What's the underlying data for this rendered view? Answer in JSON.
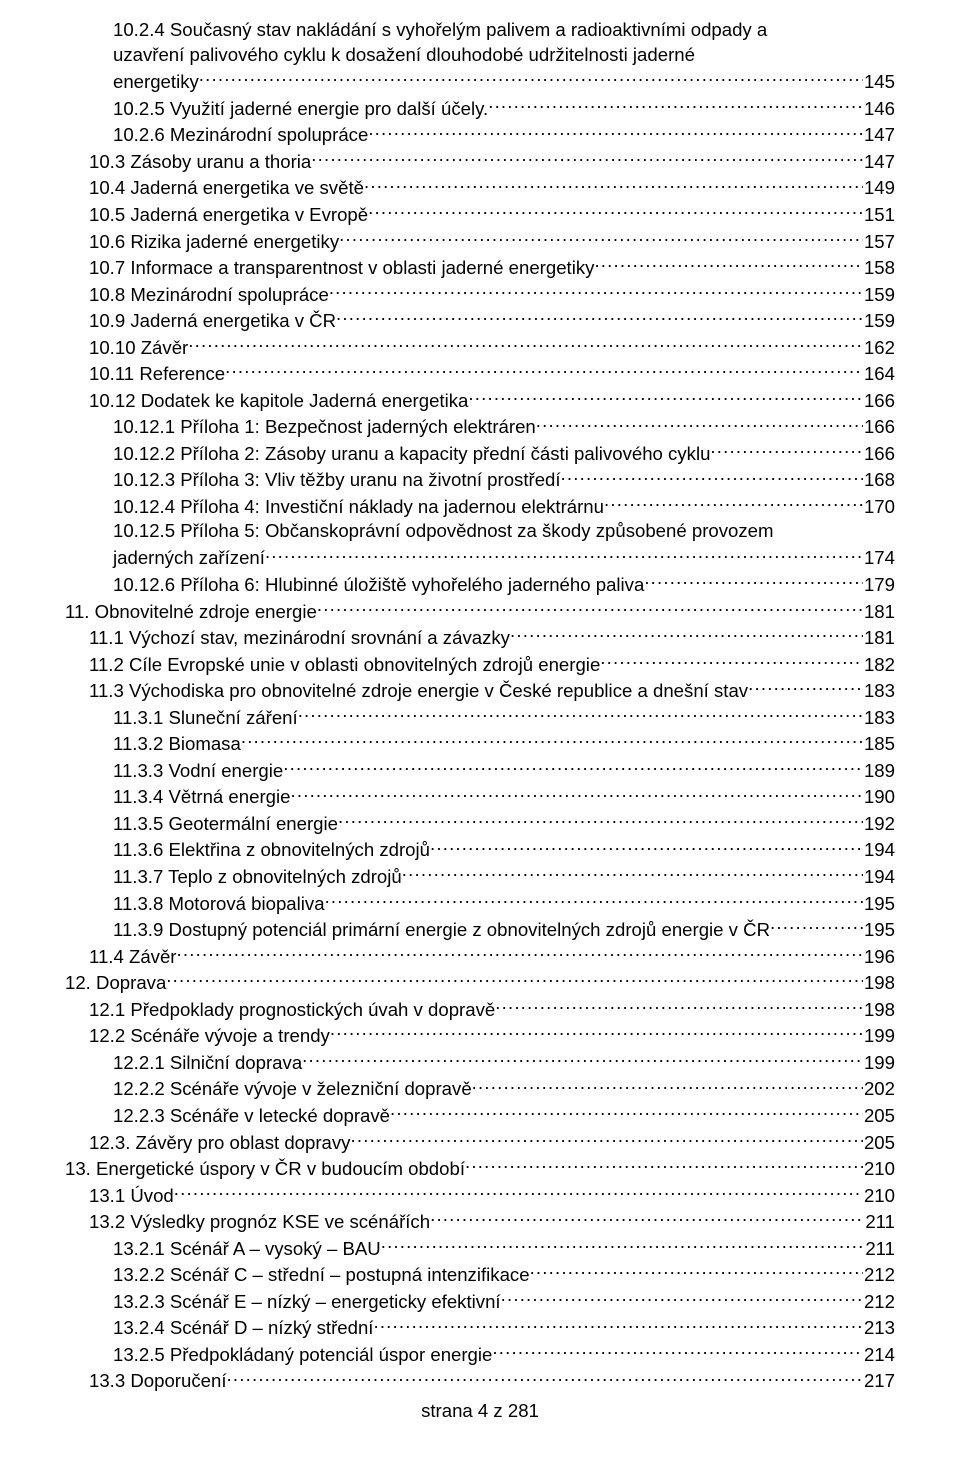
{
  "footer": "strana 4 z 281",
  "entries": [
    {
      "indent": 2,
      "text": "10.2.4 Současný stav nakládání s vyhořelým palivem a radioaktivními odpady a uzavření palivového cyklu k dosažení dlouhodobé udržitelnosti jaderné energetiky",
      "page": "145",
      "wrap": true,
      "wrapIndent": 2
    },
    {
      "indent": 2,
      "text": "10.2.5 Využití jaderné energie pro další účely.",
      "page": "146"
    },
    {
      "indent": 2,
      "text": "10.2.6 Mezinárodní spolupráce",
      "page": "147"
    },
    {
      "indent": 1,
      "text": "10.3 Zásoby uranu a thoria",
      "page": "147"
    },
    {
      "indent": 1,
      "text": "10.4 Jaderná energetika ve světě",
      "page": "149"
    },
    {
      "indent": 1,
      "text": "10.5 Jaderná energetika v Evropě",
      "page": "151"
    },
    {
      "indent": 1,
      "text": "10.6 Rizika jaderné energetiky",
      "page": "157"
    },
    {
      "indent": 1,
      "text": "10.7 Informace a transparentnost v oblasti jaderné energetiky",
      "page": "158"
    },
    {
      "indent": 1,
      "text": "10.8 Mezinárodní spolupráce",
      "page": "159"
    },
    {
      "indent": 1,
      "text": "10.9 Jaderná energetika v ČR",
      "page": "159"
    },
    {
      "indent": 1,
      "text": "10.10 Závěr",
      "page": "162"
    },
    {
      "indent": 1,
      "text": "10.11 Reference",
      "page": "164"
    },
    {
      "indent": 1,
      "text": "10.12 Dodatek ke kapitole Jaderná energetika",
      "page": "166"
    },
    {
      "indent": 2,
      "text": "10.12.1 Příloha 1: Bezpečnost jaderných elektráren",
      "page": "166"
    },
    {
      "indent": 2,
      "text": "10.12.2 Příloha 2: Zásoby uranu a kapacity přední části palivového cyklu",
      "page": "166"
    },
    {
      "indent": 2,
      "text": "10.12.3 Příloha 3: Vliv těžby uranu na životní prostředí",
      "page": "168"
    },
    {
      "indent": 2,
      "text": "10.12.4 Příloha 4: Investiční náklady na jadernou elektrárnu",
      "page": "170"
    },
    {
      "indent": 2,
      "text": "10.12.5 Příloha 5: Občanskoprávní odpovědnost za škody způsobené provozem jaderných zařízení",
      "page": "174",
      "wrap": true,
      "wrapIndent": 2
    },
    {
      "indent": 2,
      "text": "10.12.6 Příloha 6: Hlubinné úložiště vyhořelého jaderného paliva",
      "page": "179"
    },
    {
      "indent": 0,
      "text": "11. Obnovitelné zdroje energie",
      "page": "181"
    },
    {
      "indent": 1,
      "text": "11.1 Výchozí stav, mezinárodní srovnání a závazky",
      "page": "181"
    },
    {
      "indent": 1,
      "text": "11.2 Cíle Evropské unie v oblasti obnovitelných zdrojů energie",
      "page": "182"
    },
    {
      "indent": 1,
      "text": "11.3 Východiska pro obnovitelné zdroje energie v České republice a dnešní stav",
      "page": "183"
    },
    {
      "indent": 2,
      "text": "11.3.1 Sluneční záření",
      "page": "183"
    },
    {
      "indent": 2,
      "text": "11.3.2 Biomasa",
      "page": "185"
    },
    {
      "indent": 2,
      "text": "11.3.3 Vodní energie",
      "page": "189"
    },
    {
      "indent": 2,
      "text": "11.3.4 Větrná energie",
      "page": "190"
    },
    {
      "indent": 2,
      "text": "11.3.5 Geotermální energie",
      "page": "192"
    },
    {
      "indent": 2,
      "text": "11.3.6 Elektřina z obnovitelných zdrojů",
      "page": "194"
    },
    {
      "indent": 2,
      "text": "11.3.7 Teplo z obnovitelných zdrojů",
      "page": "194"
    },
    {
      "indent": 2,
      "text": "11.3.8 Motorová biopaliva",
      "page": "195"
    },
    {
      "indent": 2,
      "text": "11.3.9 Dostupný potenciál primární energie z obnovitelných zdrojů energie v ČR",
      "page": "195"
    },
    {
      "indent": 1,
      "text": "11.4 Závěr",
      "page": "196"
    },
    {
      "indent": 0,
      "text": "12. Doprava",
      "page": "198"
    },
    {
      "indent": 1,
      "text": "12.1 Předpoklady prognostických úvah v dopravě",
      "page": "198"
    },
    {
      "indent": 1,
      "text": "12.2 Scénáře vývoje a trendy",
      "page": "199"
    },
    {
      "indent": 2,
      "text": "12.2.1 Silniční doprava",
      "page": "199"
    },
    {
      "indent": 2,
      "text": "12.2.2 Scénáře vývoje v železniční dopravě",
      "page": "202"
    },
    {
      "indent": 2,
      "text": "12.2.3 Scénáře v letecké dopravě",
      "page": "205"
    },
    {
      "indent": 1,
      "text": "12.3. Závěry  pro oblast dopravy",
      "page": "205"
    },
    {
      "indent": 0,
      "text": "13. Energetické úspory v ČR v budoucím období",
      "page": "210"
    },
    {
      "indent": 1,
      "text": "13.1 Úvod",
      "page": "210"
    },
    {
      "indent": 1,
      "text": "13.2 Výsledky prognóz KSE ve scénářích",
      "page": "211"
    },
    {
      "indent": 2,
      "text": "13.2.1 Scénář A – vysoký – BAU",
      "page": "211"
    },
    {
      "indent": 2,
      "text": "13.2.2 Scénář C – střední – postupná intenzifikace",
      "page": "212"
    },
    {
      "indent": 2,
      "text": "13.2.3 Scénář E – nízký – energeticky efektivní",
      "page": "212"
    },
    {
      "indent": 2,
      "text": "13.2.4 Scénář D – nízký střední",
      "page": "213"
    },
    {
      "indent": 2,
      "text": "13.2.5 Předpokládaný potenciál úspor energie",
      "page": "214"
    },
    {
      "indent": 1,
      "text": "13.3 Doporučení",
      "page": "217"
    }
  ]
}
